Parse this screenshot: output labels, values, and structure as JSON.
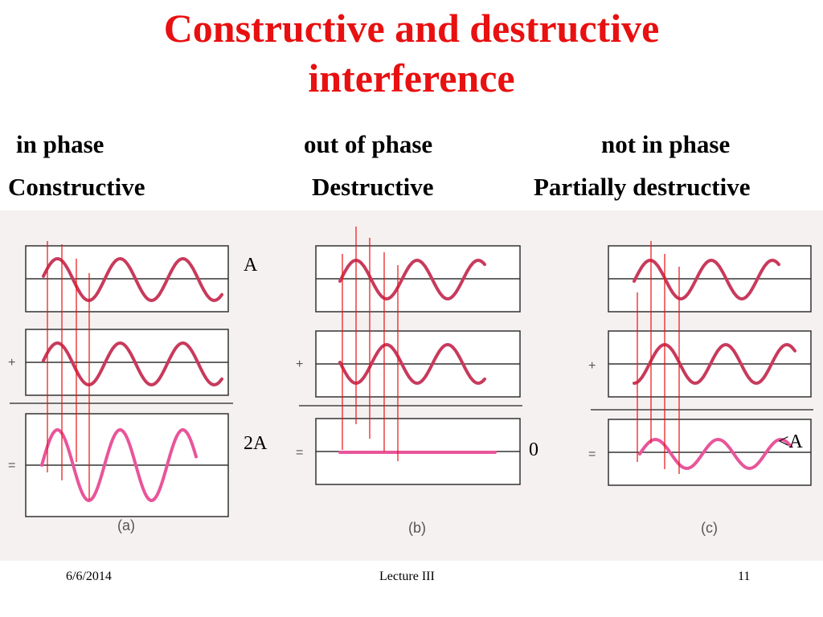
{
  "slide": {
    "title_line1": "Constructive and destructive",
    "title_line2": "interference",
    "title_color": "#e81010"
  },
  "columns": [
    {
      "phase": "in phase",
      "type": "Constructive",
      "panel_label": "(a)",
      "top_amp": "A",
      "result_amp": "2A"
    },
    {
      "phase": "out of phase",
      "type": "Destructive",
      "panel_label": "(b)",
      "result_amp": "0"
    },
    {
      "phase": "not in phase",
      "type": "Partially destructive",
      "panel_label": "(c)",
      "result_amp": "<A"
    }
  ],
  "operators": {
    "plus": "+",
    "equals": "="
  },
  "footer": {
    "date": "6/6/2014",
    "center": "Lecture III",
    "page": "11"
  },
  "colors": {
    "wave": "#c83a5c",
    "sum_wave": "#e8559a",
    "guide_line": "#e81010",
    "figure_bg": "#f5f1f0"
  }
}
